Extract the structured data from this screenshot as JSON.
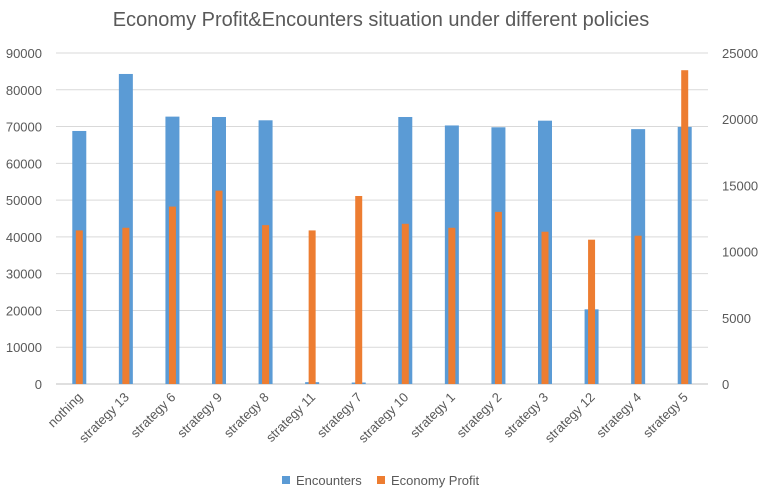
{
  "chart_data": {
    "type": "bar",
    "title": "Economy Profit&Encounters situation under different policies",
    "categories": [
      "nothing",
      "strategy 13",
      "strategy 6",
      "strategy 9",
      "strategy 8",
      "strategy 11",
      "strategy 7",
      "strategy 10",
      "strategy 1",
      "strategy 2",
      "strategy 3",
      "strategy 12",
      "strategy 4",
      "strategy 5"
    ],
    "series": [
      {
        "name": "Encounters",
        "axis": "left",
        "color": "#5B9BD5",
        "values": [
          68800,
          84300,
          72700,
          72600,
          71700,
          500,
          400,
          72600,
          70300,
          69800,
          71600,
          20300,
          69300,
          69900
        ]
      },
      {
        "name": "Economy Profit",
        "axis": "right",
        "color": "#ED7D31",
        "values": [
          11600,
          11800,
          13400,
          14600,
          12000,
          11600,
          14200,
          12100,
          11800,
          13000,
          11500,
          10900,
          11200,
          23700
        ]
      }
    ],
    "ylim_left": [
      0,
      90000
    ],
    "yticks_left": [
      "0",
      "10000",
      "20000",
      "30000",
      "40000",
      "50000",
      "60000",
      "70000",
      "80000",
      "90000"
    ],
    "ylim_right": [
      0,
      25000
    ],
    "yticks_right": [
      "0",
      "5000",
      "10000",
      "15000",
      "20000",
      "25000"
    ],
    "grid": true,
    "legend": "bottom"
  }
}
